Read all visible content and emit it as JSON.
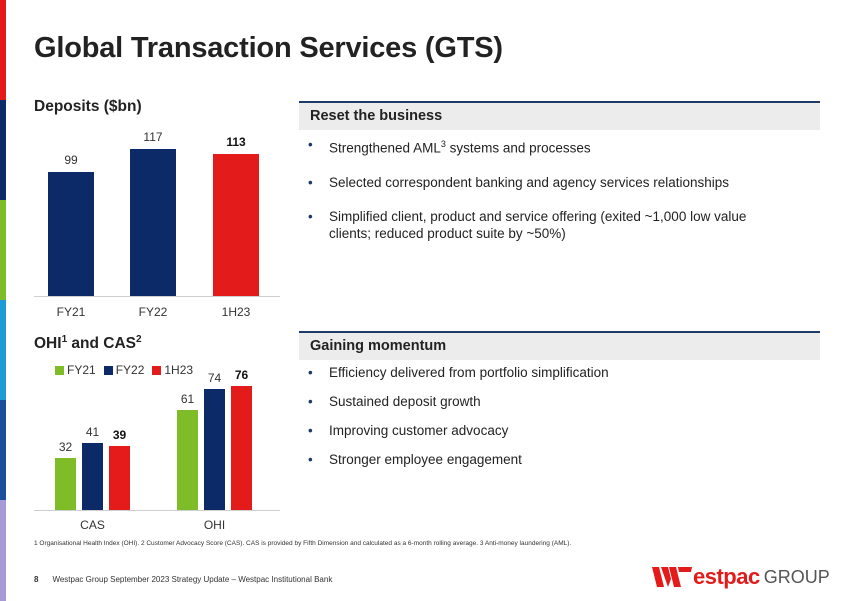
{
  "page": {
    "title": "Global Transaction Services (GTS)",
    "page_number": "8",
    "footer_text": "Westpac Group September 2023 Strategy Update – Westpac Institutional Bank",
    "footnote": "1 Organisational Health Index (OHI). 2 Customer Advocacy Score (CAS). CAS is provided by Fifth Dimension and calculated as a 6-month rolling average. 3 Anti-money laundering (AML).",
    "logo_text": "Westpac GROUP",
    "logo_word": "estpac",
    "logo_group": "GROUP"
  },
  "deposits_heading": "Deposits ($bn)",
  "ohi_heading": {
    "prefix": "OHI",
    "sup1": "1",
    "mid": " and CAS",
    "sup2": "2"
  },
  "colors": {
    "navy": "#0b2a67",
    "red": "#e41b1b",
    "green": "#7ebd27"
  },
  "chart_data": [
    {
      "type": "bar",
      "title": "Deposits ($bn)",
      "categories": [
        "FY21",
        "FY22",
        "1H23"
      ],
      "values": [
        99,
        117,
        113
      ],
      "value_labels": [
        "99",
        "117",
        "113"
      ],
      "ylim": [
        0,
        125
      ]
    },
    {
      "type": "bar",
      "title": "OHI and CAS",
      "categories": [
        "CAS",
        "OHI"
      ],
      "series": [
        {
          "name": "FY21",
          "values": [
            32,
            61
          ],
          "labels": [
            "32",
            "61"
          ]
        },
        {
          "name": "FY22",
          "values": [
            41,
            74
          ],
          "labels": [
            "41",
            "74"
          ]
        },
        {
          "name": "1H23",
          "values": [
            39,
            76
          ],
          "labels": [
            "39",
            "76"
          ]
        }
      ],
      "legend": [
        "FY21",
        "FY22",
        "1H23"
      ],
      "ylim": [
        0,
        80
      ]
    }
  ],
  "reset": {
    "heading": "Reset the business",
    "b1_pre": "Strengthened AML",
    "b1_sup": "3",
    "b1_post": " systems and processes",
    "b2": "Selected correspondent banking and agency services relationships",
    "b3": "Simplified client, product and service offering (exited ~1,000 low value clients; reduced product suite by ~50%)"
  },
  "momentum": {
    "heading": "Gaining momentum",
    "items": [
      "Efficiency delivered from portfolio simplification",
      "Sustained deposit growth",
      "Improving customer advocacy",
      "Stronger employee engagement"
    ]
  }
}
